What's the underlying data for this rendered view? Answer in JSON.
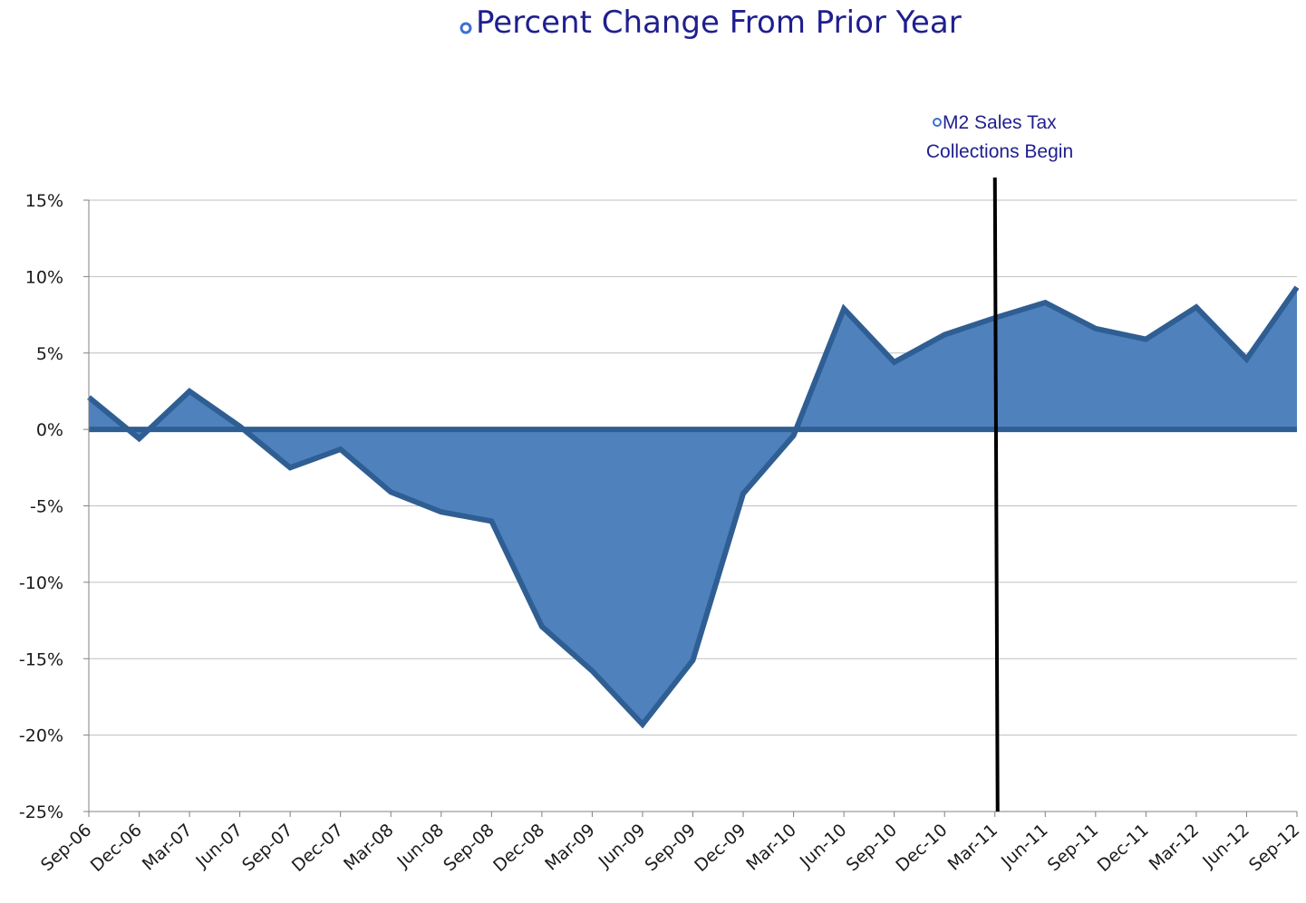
{
  "chart_data": {
    "type": "area",
    "title": "Percent Change From Prior Year",
    "annotation": {
      "line1": "M2 Sales Tax",
      "line2": "Collections Begin",
      "at_category": "Mar-11"
    },
    "categories": [
      "Sep-06",
      "Dec-06",
      "Mar-07",
      "Jun-07",
      "Sep-07",
      "Dec-07",
      "Mar-08",
      "Jun-08",
      "Sep-08",
      "Dec-08",
      "Mar-09",
      "Jun-09",
      "Sep-09",
      "Dec-09",
      "Mar-10",
      "Jun-10",
      "Sep-10",
      "Dec-10",
      "Mar-11",
      "Jun-11",
      "Sep-11",
      "Dec-11",
      "Mar-12",
      "Jun-12",
      "Sep-12"
    ],
    "values": [
      2.1,
      -0.6,
      2.5,
      0.2,
      -2.5,
      -1.3,
      -4.1,
      -5.4,
      -6.0,
      -12.9,
      -15.8,
      -19.3,
      -15.1,
      -4.2,
      -0.4,
      7.9,
      4.4,
      6.2,
      7.3,
      8.3,
      6.6,
      5.9,
      8.0,
      4.6,
      9.3
    ],
    "yticks": [
      "15%",
      "10%",
      "5%",
      "0%",
      "-5%",
      "-10%",
      "-15%",
      "-20%",
      "-25%"
    ],
    "ylim": [
      -25,
      15
    ],
    "ytick_step": 5,
    "grid": true,
    "colors": {
      "fill": "#4f81bd",
      "stroke": "#2f5e93",
      "title": "#1f1f8f",
      "bullet": "#3c6fd4",
      "annotation_line": "#000000",
      "grid": "#bfbfbf",
      "axis": "#808080"
    }
  }
}
